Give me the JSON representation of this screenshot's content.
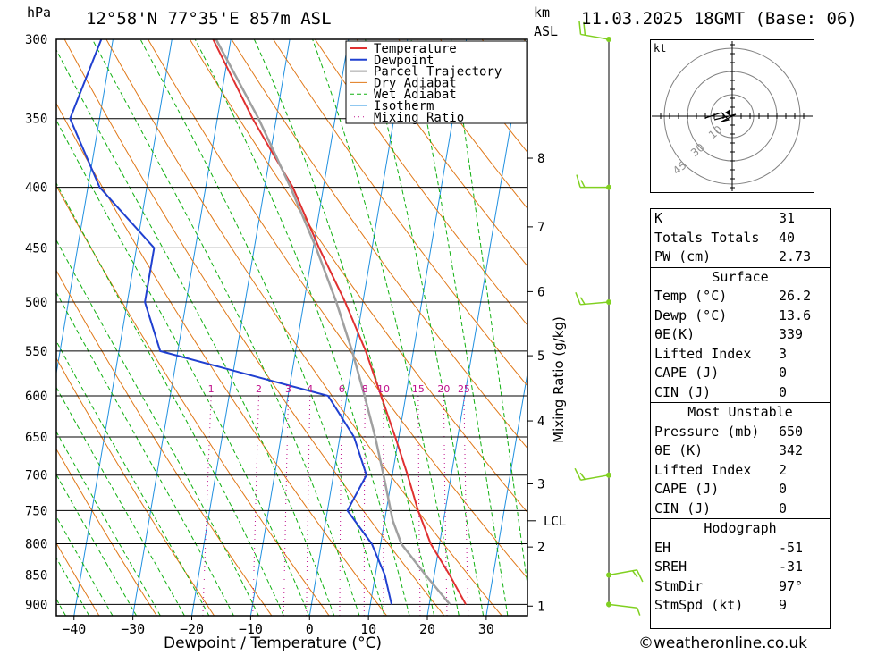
{
  "header": {
    "pressure_unit": "hPa",
    "location": "12°58'N  77°35'E  857m  ASL",
    "height_unit_line1": "km",
    "height_unit_line2": "ASL",
    "datetime": "11.03.2025  18GMT  (Base: 06)"
  },
  "chart_data": {
    "type": "line",
    "title": "12°58'N  77°35'E  857m  ASL",
    "xlabel": "Dewpoint / Temperature (°C)",
    "ylabel": "hPa",
    "right_axis_label": "Mixing Ratio (g/kg)",
    "xlim": [
      -43,
      37
    ],
    "ylim": [
      920,
      300
    ],
    "skew_per_decade": 23,
    "pressure_levels": [
      300,
      350,
      400,
      450,
      500,
      550,
      600,
      650,
      700,
      750,
      800,
      850,
      900
    ],
    "temperature_ticks": [
      -40,
      -30,
      -20,
      -10,
      0,
      10,
      20,
      30
    ],
    "km_ticks": [
      {
        "label": "1",
        "p": 903
      },
      {
        "label": "2",
        "p": 805
      },
      {
        "label": "3",
        "p": 712
      },
      {
        "label": "4",
        "p": 630
      },
      {
        "label": "5",
        "p": 555
      },
      {
        "label": "6",
        "p": 490
      },
      {
        "label": "7",
        "p": 432
      },
      {
        "label": "8",
        "p": 378
      }
    ],
    "lcl": {
      "label": "LCL",
      "p": 765
    },
    "mixing_ratio_labels": [
      "1",
      "2",
      "3",
      "4",
      "6",
      "8",
      "10",
      "15",
      "20",
      "25"
    ],
    "mixing_ratio_values": [
      1,
      2,
      3,
      4,
      6,
      8,
      10,
      15,
      20,
      25
    ],
    "legend": [
      "Temperature",
      "Dewpoint",
      "Parcel Trajectory",
      "Dry Adiabat",
      "Wet Adiabat",
      "Isotherm",
      "Mixing Ratio"
    ],
    "legend_position": "top-right",
    "series": [
      {
        "name": "Temperature",
        "color": "#e03030",
        "points": [
          [
            900,
            26.2
          ],
          [
            850,
            22.6
          ],
          [
            800,
            18.5
          ],
          [
            750,
            15.4
          ],
          [
            700,
            12.6
          ],
          [
            650,
            9.4
          ],
          [
            600,
            5.8
          ],
          [
            550,
            1.9
          ],
          [
            500,
            -3.0
          ],
          [
            450,
            -9.0
          ],
          [
            400,
            -15.2
          ],
          [
            375,
            -19.5
          ],
          [
            350,
            -24.0
          ],
          [
            300,
            -33.0
          ]
        ]
      },
      {
        "name": "Dewpoint",
        "color": "#2040d0",
        "points": [
          [
            900,
            13.6
          ],
          [
            850,
            11.6
          ],
          [
            800,
            8.5
          ],
          [
            750,
            3.4
          ],
          [
            700,
            5.6
          ],
          [
            650,
            2.4
          ],
          [
            600,
            -3.2
          ],
          [
            550,
            -33.0
          ],
          [
            500,
            -37.0
          ],
          [
            450,
            -37.0
          ],
          [
            400,
            -48.0
          ],
          [
            350,
            -55.0
          ],
          [
            300,
            -52.0
          ]
        ]
      },
      {
        "name": "Parcel Trajectory",
        "color": "#a0a0a0",
        "points": [
          [
            900,
            23.5
          ],
          [
            850,
            18.5
          ],
          [
            800,
            13.5
          ],
          [
            765,
            11.4
          ],
          [
            700,
            8.5
          ],
          [
            650,
            6.0
          ],
          [
            600,
            3.0
          ],
          [
            550,
            -0.4
          ],
          [
            500,
            -4.5
          ],
          [
            450,
            -9.5
          ],
          [
            400,
            -15.6
          ],
          [
            350,
            -23.0
          ],
          [
            300,
            -32.5
          ]
        ]
      }
    ],
    "wind_barbs": [
      {
        "p": 300,
        "dir": 280,
        "speed_kt": 20
      },
      {
        "p": 400,
        "dir": 270,
        "speed_kt": 15
      },
      {
        "p": 500,
        "dir": 265,
        "speed_kt": 15
      },
      {
        "p": 700,
        "dir": 260,
        "speed_kt": 15
      },
      {
        "p": 850,
        "dir": 80,
        "speed_kt": 15
      },
      {
        "p": 900,
        "dir": 97,
        "speed_kt": 9
      }
    ]
  },
  "hodograph": {
    "unit_label": "kt",
    "ring_labels": [
      "10",
      "30",
      "45"
    ]
  },
  "indices": {
    "general": [
      {
        "label": "K",
        "value": "31"
      },
      {
        "label": "Totals Totals",
        "value": "40"
      },
      {
        "label": "PW (cm)",
        "value": "2.73"
      }
    ],
    "surface": {
      "title": "Surface",
      "rows": [
        {
          "label": "Temp (°C)",
          "value": "26.2"
        },
        {
          "label": "Dewp (°C)",
          "value": "13.6"
        },
        {
          "label": "θE(K)",
          "value": "339"
        },
        {
          "label": "Lifted Index",
          "value": "3"
        },
        {
          "label": "CAPE (J)",
          "value": "0"
        },
        {
          "label": "CIN (J)",
          "value": "0"
        }
      ]
    },
    "most_unstable": {
      "title": "Most Unstable",
      "rows": [
        {
          "label": "Pressure (mb)",
          "value": "650"
        },
        {
          "label": "θE (K)",
          "value": "342"
        },
        {
          "label": "Lifted Index",
          "value": "2"
        },
        {
          "label": "CAPE (J)",
          "value": "0"
        },
        {
          "label": "CIN (J)",
          "value": "0"
        }
      ]
    },
    "hodograph": {
      "title": "Hodograph",
      "rows": [
        {
          "label": "EH",
          "value": "-51"
        },
        {
          "label": "SREH",
          "value": "-31"
        },
        {
          "label": "StmDir",
          "value": "97°"
        },
        {
          "label": "StmSpd (kt)",
          "value": "9"
        }
      ]
    }
  },
  "footer": {
    "credit": "©weatheronline.co.uk"
  },
  "colors": {
    "temperature": "#e03030",
    "dewpoint": "#2040d0",
    "parcel": "#a0a0a0",
    "dry_adiabat": "#e07818",
    "wet_adiabat": "#10b010",
    "isotherm": "#2090e0",
    "mixing_ratio": "#c0108c",
    "barb": "#80d020"
  }
}
